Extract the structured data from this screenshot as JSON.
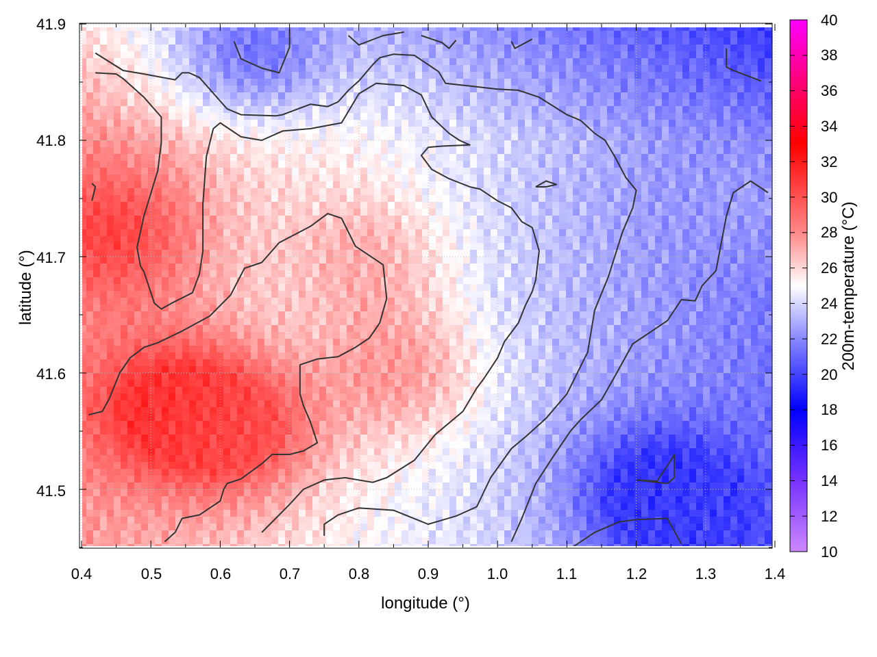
{
  "chart_data": {
    "type": "heatmap",
    "xlabel": "longitude (°)",
    "ylabel": "latitude (°)",
    "colorbar_label": "200m-temperature (°C)",
    "xlim": [
      0.4,
      1.4
    ],
    "ylim": [
      41.45,
      41.9
    ],
    "x_ticks": [
      "0.4",
      "0.5",
      "0.6",
      "0.7",
      "0.8",
      "0.9",
      "1.0",
      "1.1",
      "1.2",
      "1.3",
      "1.4"
    ],
    "y_ticks": [
      "41.5",
      "41.6",
      "41.7",
      "41.8",
      "41.9"
    ],
    "colorbar_range": [
      10,
      40
    ],
    "colorbar_ticks": [
      "10",
      "12",
      "14",
      "16",
      "18",
      "20",
      "22",
      "24",
      "26",
      "28",
      "30",
      "32",
      "34",
      "36",
      "38",
      "40"
    ],
    "colormap": [
      {
        "value": 10,
        "color": "#cc88ff"
      },
      {
        "value": 14,
        "color": "#7733ff"
      },
      {
        "value": 18,
        "color": "#0000ff"
      },
      {
        "value": 22,
        "color": "#8888ff"
      },
      {
        "value": 25,
        "color": "#ffffff"
      },
      {
        "value": 28,
        "color": "#ff8888"
      },
      {
        "value": 33,
        "color": "#ff0000"
      },
      {
        "value": 36,
        "color": "#ff0066"
      },
      {
        "value": 40,
        "color": "#ff00ff"
      }
    ],
    "grid": true,
    "contour_color": "#333333",
    "field_hotspots": [
      {
        "lon": 0.52,
        "lat": 41.57,
        "temp": 31.5
      },
      {
        "lon": 0.44,
        "lat": 41.72,
        "temp": 30.5
      },
      {
        "lon": 0.62,
        "lat": 41.55,
        "temp": 30.0
      },
      {
        "lon": 0.8,
        "lat": 41.7,
        "temp": 27.0
      },
      {
        "lon": 0.85,
        "lat": 41.6,
        "temp": 27.5
      },
      {
        "lon": 1.23,
        "lat": 41.5,
        "temp": 19.5
      },
      {
        "lon": 1.3,
        "lat": 41.47,
        "temp": 20.0
      },
      {
        "lon": 0.65,
        "lat": 41.88,
        "temp": 21.5
      },
      {
        "lon": 1.35,
        "lat": 41.75,
        "temp": 22.5
      }
    ],
    "contours": [
      [
        [
          0.42,
          41.875
        ],
        [
          0.46,
          41.86
        ],
        [
          0.49,
          41.857
        ],
        [
          0.535,
          41.852
        ],
        [
          0.545,
          41.858
        ],
        [
          0.555,
          41.858
        ],
        [
          0.57,
          41.854
        ],
        [
          0.61,
          41.827
        ],
        [
          0.63,
          41.822
        ],
        [
          0.68,
          41.821
        ],
        [
          0.69,
          41.822
        ],
        [
          0.73,
          41.831
        ],
        [
          0.755,
          41.829
        ],
        [
          0.77,
          41.833
        ],
        [
          0.785,
          41.843
        ],
        [
          0.8,
          41.851
        ],
        [
          0.82,
          41.865
        ],
        [
          0.83,
          41.871
        ],
        [
          0.85,
          41.874
        ],
        [
          0.88,
          41.873
        ],
        [
          0.915,
          41.859
        ],
        [
          0.925,
          41.849
        ],
        [
          1.0,
          41.844
        ],
        [
          1.03,
          41.843
        ],
        [
          1.06,
          41.837
        ],
        [
          1.1,
          41.822
        ],
        [
          1.12,
          41.817
        ],
        [
          1.14,
          41.806
        ],
        [
          1.155,
          41.8
        ],
        [
          1.17,
          41.785
        ],
        [
          1.185,
          41.768
        ],
        [
          1.2,
          41.757
        ],
        [
          1.195,
          41.742
        ],
        [
          1.18,
          41.721
        ],
        [
          1.16,
          41.683
        ],
        [
          1.14,
          41.654
        ],
        [
          1.13,
          41.618
        ],
        [
          1.1,
          41.582
        ],
        [
          1.07,
          41.561
        ],
        [
          1.04,
          41.545
        ],
        [
          1.02,
          41.535
        ],
        [
          0.99,
          41.51
        ],
        [
          0.97,
          41.485
        ],
        [
          0.94,
          41.477
        ],
        [
          0.9,
          41.47
        ],
        [
          0.85,
          41.482
        ],
        [
          0.8,
          41.484
        ],
        [
          0.77,
          41.478
        ],
        [
          0.75,
          41.47
        ],
        [
          0.75,
          41.46
        ]
      ],
      [
        [
          0.42,
          41.858
        ],
        [
          0.45,
          41.857
        ],
        [
          0.46,
          41.853
        ],
        [
          0.49,
          41.837
        ],
        [
          0.515,
          41.82
        ],
        [
          0.515,
          41.798
        ],
        [
          0.51,
          41.774
        ],
        [
          0.49,
          41.735
        ],
        [
          0.48,
          41.708
        ],
        [
          0.485,
          41.692
        ],
        [
          0.49,
          41.687
        ],
        [
          0.505,
          41.66
        ],
        [
          0.515,
          41.655
        ],
        [
          0.53,
          41.66
        ],
        [
          0.56,
          41.669
        ],
        [
          0.57,
          41.685
        ],
        [
          0.575,
          41.705
        ],
        [
          0.575,
          41.745
        ],
        [
          0.58,
          41.786
        ],
        [
          0.59,
          41.81
        ],
        [
          0.6,
          41.815
        ],
        [
          0.63,
          41.803
        ],
        [
          0.66,
          41.8
        ],
        [
          0.69,
          41.808
        ],
        [
          0.73,
          41.81
        ],
        [
          0.775,
          41.815
        ],
        [
          0.8,
          41.84
        ],
        [
          0.825,
          41.849
        ],
        [
          0.865,
          41.847
        ],
        [
          0.89,
          41.839
        ],
        [
          0.905,
          41.82
        ],
        [
          0.93,
          41.806
        ],
        [
          0.945,
          41.8
        ],
        [
          0.96,
          41.796
        ],
        [
          0.92,
          41.795
        ],
        [
          0.9,
          41.794
        ],
        [
          0.89,
          41.787
        ],
        [
          0.905,
          41.775
        ],
        [
          0.93,
          41.767
        ],
        [
          0.96,
          41.76
        ],
        [
          0.975,
          41.758
        ],
        [
          1.0,
          41.748
        ],
        [
          1.02,
          41.742
        ],
        [
          1.035,
          41.73
        ],
        [
          1.05,
          41.725
        ],
        [
          1.06,
          41.705
        ],
        [
          1.055,
          41.68
        ],
        [
          1.05,
          41.67
        ],
        [
          1.04,
          41.658
        ],
        [
          1.03,
          41.643
        ],
        [
          1.01,
          41.627
        ],
        [
          1.0,
          41.613
        ],
        [
          0.98,
          41.595
        ],
        [
          0.97,
          41.587
        ],
        [
          0.95,
          41.567
        ],
        [
          0.91,
          41.547
        ],
        [
          0.88,
          41.525
        ],
        [
          0.84,
          41.51
        ],
        [
          0.82,
          41.506
        ],
        [
          0.78,
          41.51
        ],
        [
          0.75,
          41.508
        ],
        [
          0.72,
          41.5
        ],
        [
          0.7,
          41.487
        ],
        [
          0.66,
          41.463
        ]
      ],
      [
        [
          0.41,
          41.564
        ],
        [
          0.43,
          41.567
        ],
        [
          0.44,
          41.578
        ],
        [
          0.455,
          41.6
        ],
        [
          0.47,
          41.613
        ],
        [
          0.49,
          41.622
        ],
        [
          0.51,
          41.626
        ],
        [
          0.545,
          41.636
        ],
        [
          0.585,
          41.649
        ],
        [
          0.615,
          41.667
        ],
        [
          0.635,
          41.69
        ],
        [
          0.66,
          41.695
        ],
        [
          0.685,
          41.712
        ],
        [
          0.73,
          41.726
        ],
        [
          0.755,
          41.737
        ],
        [
          0.775,
          41.733
        ],
        [
          0.795,
          41.709
        ],
        [
          0.835,
          41.693
        ],
        [
          0.84,
          41.664
        ],
        [
          0.83,
          41.643
        ],
        [
          0.815,
          41.63
        ],
        [
          0.795,
          41.622
        ],
        [
          0.77,
          41.614
        ],
        [
          0.74,
          41.612
        ],
        [
          0.715,
          41.607
        ],
        [
          0.715,
          41.582
        ],
        [
          0.72,
          41.572
        ],
        [
          0.73,
          41.558
        ],
        [
          0.74,
          41.54
        ],
        [
          0.72,
          41.533
        ],
        [
          0.7,
          41.53
        ],
        [
          0.675,
          41.53
        ],
        [
          0.66,
          41.522
        ],
        [
          0.63,
          41.509
        ],
        [
          0.61,
          41.505
        ],
        [
          0.605,
          41.5
        ],
        [
          0.6,
          41.49
        ],
        [
          0.57,
          41.478
        ],
        [
          0.545,
          41.475
        ],
        [
          0.535,
          41.463
        ],
        [
          0.52,
          41.455
        ]
      ],
      [
        [
          0.415,
          41.763
        ],
        [
          0.42,
          41.76
        ],
        [
          0.415,
          41.748
        ]
      ],
      [
        [
          0.62,
          41.885
        ],
        [
          0.63,
          41.87
        ],
        [
          0.66,
          41.862
        ],
        [
          0.685,
          41.858
        ],
        [
          0.7,
          41.88
        ],
        [
          0.7,
          41.895
        ]
      ],
      [
        [
          0.785,
          41.89
        ],
        [
          0.8,
          41.882
        ],
        [
          0.835,
          41.89
        ],
        [
          0.865,
          41.893
        ]
      ],
      [
        [
          0.89,
          41.89
        ],
        [
          0.92,
          41.884
        ],
        [
          0.93,
          41.879
        ],
        [
          0.94,
          41.886
        ]
      ],
      [
        [
          1.02,
          41.885
        ],
        [
          1.025,
          41.879
        ],
        [
          1.05,
          41.887
        ]
      ],
      [
        [
          1.33,
          41.879
        ],
        [
          1.33,
          41.863
        ],
        [
          1.34,
          41.86
        ],
        [
          1.38,
          41.851
        ]
      ],
      [
        [
          1.055,
          41.76
        ],
        [
          1.07,
          41.765
        ],
        [
          1.085,
          41.762
        ],
        [
          1.07,
          41.76
        ],
        [
          1.055,
          41.76
        ]
      ],
      [
        [
          1.2,
          41.508
        ],
        [
          1.23,
          41.507
        ],
        [
          1.25,
          41.525
        ],
        [
          1.255,
          41.53
        ],
        [
          1.255,
          41.51
        ],
        [
          1.245,
          41.505
        ],
        [
          1.2,
          41.508
        ]
      ],
      [
        [
          1.11,
          41.451
        ],
        [
          1.14,
          41.463
        ],
        [
          1.175,
          41.472
        ],
        [
          1.2,
          41.474
        ],
        [
          1.245,
          41.475
        ],
        [
          1.265,
          41.453
        ]
      ],
      [
        [
          1.02,
          41.455
        ],
        [
          1.035,
          41.475
        ],
        [
          1.055,
          41.505
        ],
        [
          1.08,
          41.528
        ],
        [
          1.105,
          41.55
        ],
        [
          1.12,
          41.56
        ],
        [
          1.15,
          41.577
        ],
        [
          1.17,
          41.598
        ],
        [
          1.195,
          41.625
        ],
        [
          1.225,
          41.637
        ],
        [
          1.245,
          41.645
        ],
        [
          1.265,
          41.663
        ],
        [
          1.285,
          41.662
        ],
        [
          1.295,
          41.675
        ],
        [
          1.315,
          41.688
        ],
        [
          1.33,
          41.735
        ],
        [
          1.34,
          41.755
        ],
        [
          1.365,
          41.765
        ],
        [
          1.39,
          41.755
        ]
      ]
    ]
  }
}
